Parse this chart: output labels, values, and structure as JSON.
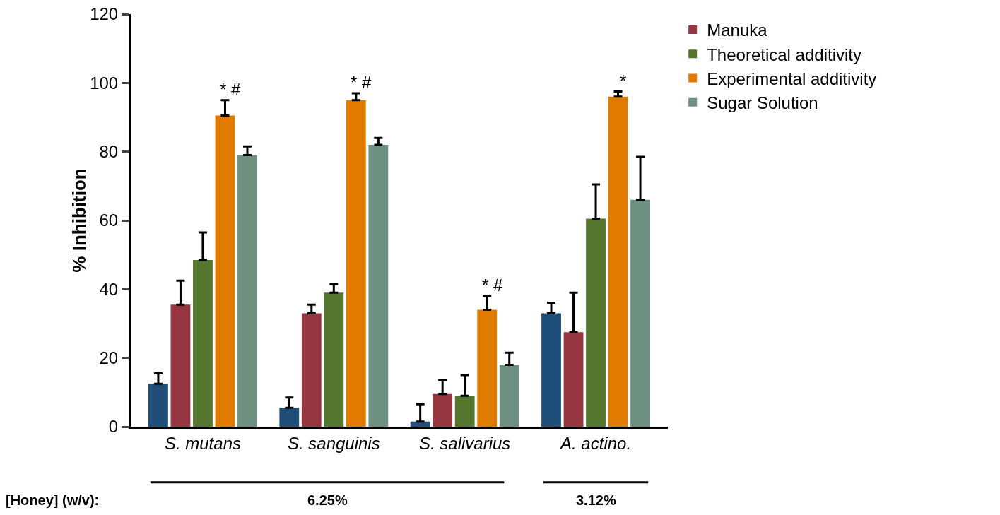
{
  "chart_data": {
    "type": "bar",
    "ylabel": "% Inhibition",
    "categories": [
      "S. mutans",
      "S. sanguinis",
      "S. salivarius",
      "A. actino."
    ],
    "series": [
      {
        "color": "#1f4e79",
        "values": [
          12.5,
          5.5,
          1.5,
          33
        ],
        "errors": [
          [
            12.5,
            15.5
          ],
          [
            5.5,
            8.5
          ],
          [
            1.5,
            6.5
          ],
          [
            33,
            36
          ]
        ]
      },
      {
        "name": "Manuka",
        "color": "#953640",
        "values": [
          35.5,
          33,
          9.5,
          27.5
        ],
        "errors": [
          [
            35.5,
            42.5
          ],
          [
            33,
            35.5
          ],
          [
            9.5,
            13.5
          ],
          [
            27.5,
            39
          ]
        ]
      },
      {
        "name": "Theoretical additivity",
        "color": "#54762e",
        "values": [
          48.5,
          39,
          9,
          60.5
        ],
        "errors": [
          [
            48.5,
            56.5
          ],
          [
            39,
            41.5
          ],
          [
            9,
            15
          ],
          [
            60.5,
            70.5
          ]
        ]
      },
      {
        "name": "Experimental additivity",
        "color": "#e07b00",
        "values": [
          90.5,
          95,
          34,
          96
        ],
        "errors": [
          [
            90.5,
            95
          ],
          [
            95,
            97
          ],
          [
            34,
            38
          ],
          [
            96,
            97.5
          ]
        ]
      },
      {
        "name": "Sugar Solution",
        "color": "#6e9080",
        "values": [
          79,
          82,
          18,
          66
        ],
        "errors": [
          [
            79,
            81.5
          ],
          [
            82,
            84
          ],
          [
            18,
            21.5
          ],
          [
            66,
            78.5
          ]
        ]
      }
    ],
    "ylim": [
      0,
      120
    ],
    "yticks": [
      0,
      20,
      40,
      60,
      80,
      100,
      120
    ],
    "grid": false,
    "legend": "top right",
    "annotations": [
      "* #",
      "* #",
      "* #",
      "*",
      "[Honey] (w/v):",
      "6.25%",
      "3.12%"
    ]
  }
}
